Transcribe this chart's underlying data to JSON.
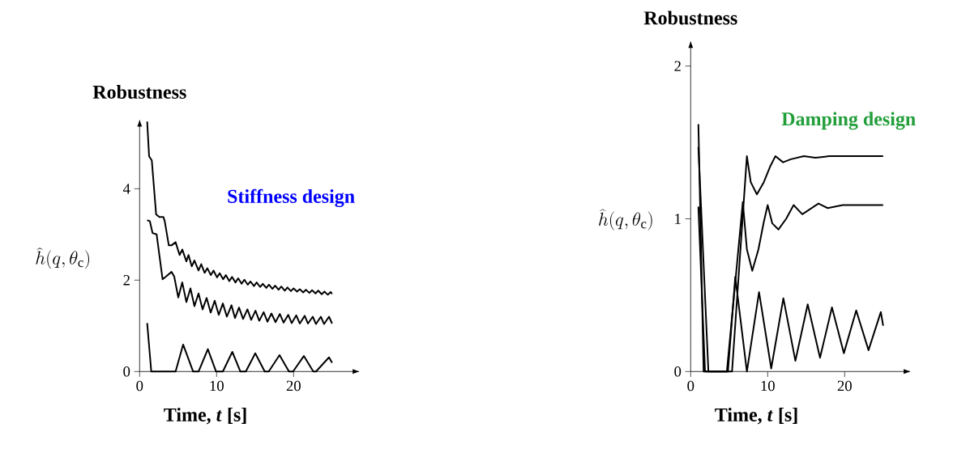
{
  "chart_data": [
    {
      "type": "line",
      "title": "Robustness",
      "xlabel": "Time, *t* [s]",
      "ylabel": "\\widehat{h}(q, \\theta_{\\mathrm{c}})",
      "annotations": [
        "Stiffness design"
      ],
      "xlim": [
        0,
        28.5
      ],
      "ylim": [
        0,
        5.5
      ],
      "xticks": [
        0,
        10,
        20
      ],
      "yticks": [
        0,
        2,
        4
      ],
      "series": [
        {
          "color": "#000000",
          "x": [
            0.98,
            1.23,
            1.58,
            2.14,
            2.56,
            3.09,
            3.26,
            3.79,
            4.14,
            4.67,
            5.19,
            5.54,
            6.07,
            6.35,
            6.77,
            7.12,
            7.65,
            8.0,
            8.45,
            8.8,
            9.25,
            9.6,
            10.05,
            10.4,
            10.85,
            11.2,
            11.65,
            12.0,
            12.45,
            12.8,
            13.25,
            13.6,
            14.05,
            14.4,
            14.85,
            15.2,
            15.65,
            16.0,
            16.45,
            16.8,
            17.25,
            17.6,
            18.05,
            18.4,
            18.85,
            19.2,
            19.65,
            20.0,
            20.45,
            20.8,
            21.25,
            21.6,
            22.05,
            22.4,
            22.85,
            23.2,
            23.65,
            24.0,
            24.45,
            24.8,
            25.0
          ],
          "values": [
            5.47,
            4.71,
            4.62,
            3.44,
            3.38,
            3.38,
            3.29,
            2.76,
            2.76,
            2.83,
            2.55,
            2.67,
            2.41,
            2.55,
            2.3,
            2.43,
            2.21,
            2.35,
            2.16,
            2.26,
            2.11,
            2.21,
            2.06,
            2.15,
            2.02,
            2.11,
            1.98,
            2.07,
            1.95,
            2.04,
            1.92,
            2.01,
            1.9,
            1.97,
            1.87,
            1.95,
            1.85,
            1.92,
            1.83,
            1.9,
            1.81,
            1.88,
            1.79,
            1.86,
            1.77,
            1.84,
            1.76,
            1.82,
            1.75,
            1.8,
            1.73,
            1.79,
            1.72,
            1.78,
            1.71,
            1.77,
            1.69,
            1.75,
            1.68,
            1.74,
            1.7
          ]
        },
        {
          "color": "#000000",
          "x": [
            0.98,
            1.33,
            1.68,
            2.21,
            2.56,
            2.98,
            3.44,
            4.14,
            4.49,
            5.02,
            5.54,
            6.07,
            6.6,
            7.12,
            7.65,
            8.18,
            8.7,
            9.23,
            9.75,
            10.28,
            10.81,
            11.33,
            11.93,
            12.39,
            12.91,
            13.44,
            14.0,
            14.49,
            15.05,
            15.54,
            16.11,
            16.6,
            17.12,
            17.65,
            18.21,
            18.7,
            19.3,
            19.75,
            20.35,
            20.8,
            21.44,
            21.86,
            22.49,
            22.91,
            23.54,
            23.96,
            24.6,
            25.0
          ],
          "values": [
            3.31,
            3.29,
            3.03,
            3.0,
            2.55,
            2.02,
            2.08,
            2.18,
            2.08,
            1.62,
            1.95,
            1.52,
            1.82,
            1.43,
            1.71,
            1.36,
            1.61,
            1.29,
            1.55,
            1.24,
            1.49,
            1.2,
            1.45,
            1.17,
            1.4,
            1.15,
            1.36,
            1.13,
            1.33,
            1.11,
            1.3,
            1.09,
            1.27,
            1.08,
            1.26,
            1.07,
            1.24,
            1.06,
            1.23,
            1.05,
            1.22,
            1.05,
            1.2,
            1.04,
            1.2,
            1.04,
            1.2,
            1.05
          ]
        },
        {
          "color": "#000000",
          "x": [
            0.98,
            1.51,
            4.67,
            5.65,
            6.95,
            7.65,
            8.86,
            9.93,
            10.81,
            12.04,
            13.09,
            13.79,
            15.02,
            16.25,
            16.77,
            18.17,
            19.4,
            19.93,
            21.33,
            22.56,
            22.91,
            24.6,
            25.0
          ],
          "values": [
            1.06,
            0,
            0,
            0.59,
            0,
            0,
            0.49,
            0,
            0,
            0.43,
            0,
            0,
            0.4,
            0,
            0,
            0.36,
            0,
            0,
            0.34,
            0,
            0,
            0.31,
            0.19
          ]
        }
      ]
    },
    {
      "type": "line",
      "title": "Robustness",
      "xlabel": "Time, *t* [s]",
      "ylabel": "\\widehat{h}(q, \\theta_{\\mathrm{c}})",
      "annotations": [
        "Damping design"
      ],
      "xlim": [
        0,
        28.5
      ],
      "ylim": [
        0,
        2.16
      ],
      "xticks": [
        0,
        10,
        20
      ],
      "yticks": [
        0,
        1,
        2
      ],
      "series": [
        {
          "color": "#000000",
          "x": [
            1.0,
            2.3,
            5.37,
            7.3,
            7.8,
            8.6,
            9.5,
            10.3,
            11.0,
            12.0,
            13.0,
            14.7,
            16.2,
            18.0,
            25.0
          ],
          "values": [
            1.47,
            0,
            0,
            1.41,
            1.24,
            1.16,
            1.24,
            1.34,
            1.41,
            1.37,
            1.39,
            1.41,
            1.4,
            1.41,
            1.41
          ]
        },
        {
          "color": "#000000",
          "x": [
            1.0,
            1.68,
            4.7,
            6.77,
            7.3,
            8.0,
            8.8,
            9.5,
            10.0,
            10.6,
            11.4,
            12.4,
            13.37,
            14.5,
            16.6,
            17.8,
            19.75,
            25.0
          ],
          "values": [
            1.62,
            0,
            0,
            1.11,
            0.8,
            0.66,
            0.8,
            0.98,
            1.09,
            0.97,
            0.93,
            1.0,
            1.09,
            1.03,
            1.1,
            1.07,
            1.09,
            1.09
          ]
        },
        {
          "color": "#000000",
          "x": [
            1.0,
            1.86,
            4.84,
            5.79,
            7.3,
            8.88,
            10.46,
            12.04,
            13.6,
            15.2,
            16.8,
            18.35,
            19.9,
            21.5,
            23.1,
            24.7,
            25.0
          ],
          "values": [
            1.08,
            0,
            0,
            0.62,
            0,
            0.52,
            0.02,
            0.48,
            0.07,
            0.44,
            0.09,
            0.42,
            0.12,
            0.4,
            0.14,
            0.39,
            0.3
          ]
        }
      ]
    }
  ]
}
